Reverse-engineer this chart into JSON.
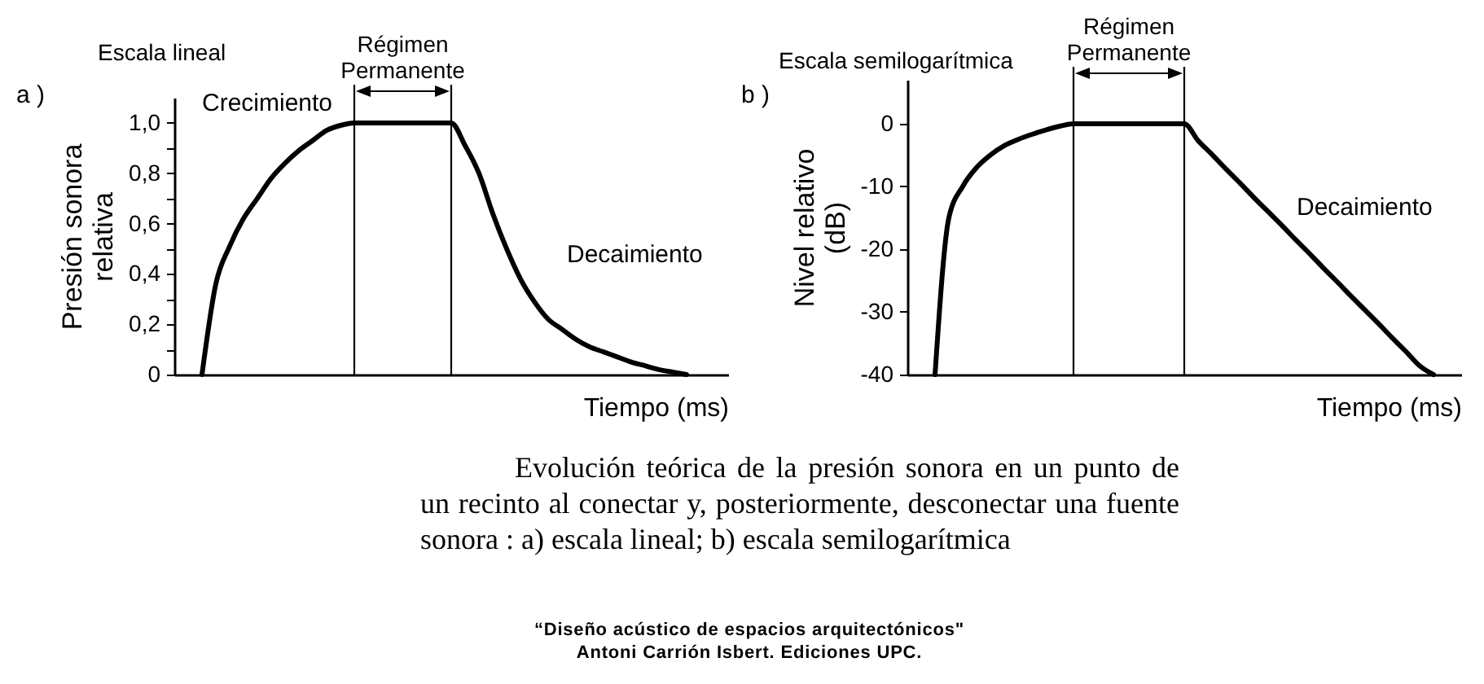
{
  "chart_data": [
    {
      "type": "line",
      "xlabel": "Tiempo (ms)",
      "ylabel": "Presión sonora relativa",
      "ylim": [
        0,
        1.1
      ],
      "tick_labels": "y",
      "yticks": [
        {
          "value": 0,
          "label": "0"
        },
        {
          "value": 0.1,
          "label": null
        },
        {
          "value": 0.2,
          "label": "0,2"
        },
        {
          "value": 0.3,
          "label": null
        },
        {
          "value": 0.4,
          "label": "0,4"
        },
        {
          "value": 0.5,
          "label": null
        },
        {
          "value": 0.6,
          "label": "0,6"
        },
        {
          "value": 0.7,
          "label": null
        },
        {
          "value": 0.8,
          "label": "0,8"
        },
        {
          "value": 0.9,
          "label": null
        },
        {
          "value": 1,
          "label": "1,0"
        }
      ],
      "categories": [
        null,
        null,
        null,
        null,
        null,
        null,
        null,
        null,
        null,
        null,
        null,
        null,
        null,
        null,
        null,
        null,
        null,
        null,
        null,
        null,
        null,
        null,
        null,
        null,
        null,
        null,
        null,
        null,
        null,
        null,
        null,
        null,
        null,
        null,
        null,
        null,
        null,
        null,
        null,
        null,
        null
      ],
      "series": [
        {
          "color": "#000000",
          "values": [
            null,
            null,
            0,
            0.36,
            0.51,
            0.62,
            0.7,
            0.78,
            0.84,
            0.89,
            0.93,
            0.97,
            0.99,
            1,
            1,
            1,
            1,
            1,
            1,
            1,
            1,
            0.91,
            0.8,
            0.64,
            0.5,
            0.38,
            0.29,
            0.22,
            0.18,
            0.14,
            0.11,
            0.09,
            0.07,
            0.05,
            0.035,
            0.02,
            0.01,
            0,
            null,
            null,
            null
          ]
        }
      ],
      "annotations": [
        "a )",
        "Escala lineal",
        "Régimen Permanente",
        "Crecimiento",
        "Decaimiento"
      ]
    },
    {
      "type": "line",
      "xlabel": "Tiempo (ms)",
      "ylabel": "Nivel relativo (dB)",
      "ylim": [
        -40,
        7
      ],
      "tick_labels": "y",
      "yticks": [
        -40,
        -30,
        -20,
        -10,
        0
      ],
      "categories": [
        null,
        null,
        null,
        null,
        null,
        null,
        null,
        null,
        null,
        null,
        null,
        null,
        null,
        null,
        null,
        null,
        null,
        null,
        null,
        null,
        null,
        null,
        null,
        null,
        null,
        null,
        null,
        null,
        null,
        null,
        null,
        null,
        null,
        null,
        null,
        null,
        null,
        null,
        null,
        null,
        null
      ],
      "series": [
        {
          "color": "#000000",
          "values": [
            null,
            null,
            -40,
            -15,
            -10,
            -7,
            -5,
            -3.5,
            -2.5,
            -1.7,
            -1,
            -0.4,
            0,
            0,
            0,
            0,
            0,
            0,
            0,
            0,
            0,
            -2.7,
            -4.9,
            -7.2,
            -9.4,
            -11.7,
            -13.9,
            -16.1,
            -18.4,
            -20.6,
            -22.9,
            -25.1,
            -27.4,
            -29.6,
            -31.8,
            -34.1,
            -36.3,
            -38.6,
            -40,
            null,
            null
          ]
        }
      ],
      "annotations": [
        "b )",
        "Escala semilogarítmica",
        "Régimen Permanente",
        "Decaimiento"
      ]
    },
    {
      "type": "other",
      "annotations": [
        "Evolución teórica de la presión sonora en un punto de un recinto al conectar y, posteriormente, desconectar una fuente sonora : a) escala lineal; b) escala semilogarítmica",
        "“Diseño acústico de espacios arquitectónicos\"",
        "Antoni Carrión Isbert. Ediciones UPC."
      ]
    }
  ]
}
